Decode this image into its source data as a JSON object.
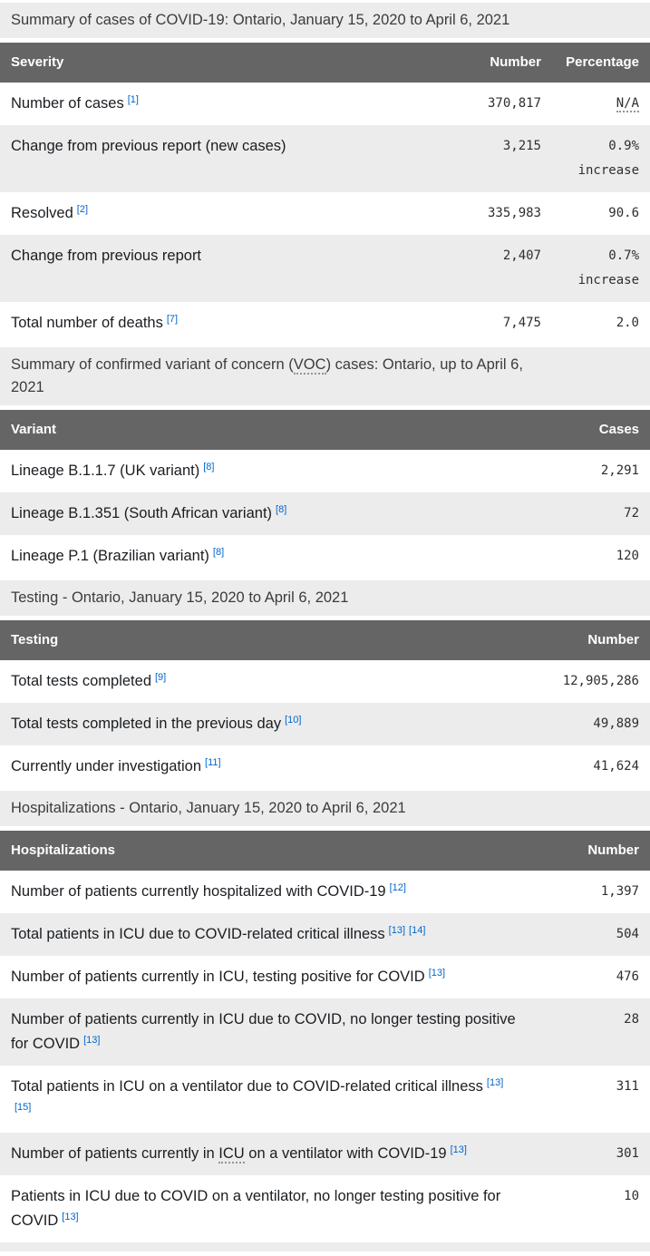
{
  "colors": {
    "table_header_bg": "#656565",
    "table_header_text": "#ffffff",
    "zebra_stripe_bg": "#ececec",
    "caption_bg": "#ececec",
    "footnote_link": "#0066cc"
  },
  "tables": [
    {
      "id": "cases",
      "caption_parts": [
        {
          "t": "text",
          "v": "Summary of cases of COVID-19: Ontario, January 15, 2020 to April 6, 2021"
        }
      ],
      "columns": [
        "Severity",
        "Number",
        "Percentage"
      ],
      "rows": [
        {
          "label": [
            {
              "t": "text",
              "v": "Number of cases"
            },
            {
              "t": "ref",
              "v": "[1]"
            }
          ],
          "values": [
            [
              {
                "t": "text",
                "v": "370,817"
              }
            ],
            [
              {
                "t": "abbr",
                "v": "N/A"
              }
            ]
          ]
        },
        {
          "label": [
            {
              "t": "text",
              "v": "Change from previous report (new cases)"
            }
          ],
          "values": [
            [
              {
                "t": "text",
                "v": "3,215"
              }
            ],
            [
              {
                "t": "text",
                "v": "0.9% increase"
              }
            ]
          ]
        },
        {
          "label": [
            {
              "t": "text",
              "v": "Resolved"
            },
            {
              "t": "ref",
              "v": "[2]"
            }
          ],
          "values": [
            [
              {
                "t": "text",
                "v": "335,983"
              }
            ],
            [
              {
                "t": "text",
                "v": "90.6"
              }
            ]
          ]
        },
        {
          "label": [
            {
              "t": "text",
              "v": "Change from previous report"
            }
          ],
          "values": [
            [
              {
                "t": "text",
                "v": "2,407"
              }
            ],
            [
              {
                "t": "text",
                "v": "0.7% increase"
              }
            ]
          ]
        },
        {
          "label": [
            {
              "t": "text",
              "v": "Total number of deaths"
            },
            {
              "t": "ref",
              "v": "[7]"
            }
          ],
          "values": [
            [
              {
                "t": "text",
                "v": "7,475"
              }
            ],
            [
              {
                "t": "text",
                "v": "2.0"
              }
            ]
          ]
        }
      ]
    },
    {
      "id": "variants",
      "caption_parts": [
        {
          "t": "text",
          "v": "Summary of confirmed variant of concern ("
        },
        {
          "t": "abbr",
          "v": "VOC"
        },
        {
          "t": "text",
          "v": ") cases: Ontario, up to April 6,"
        },
        {
          "t": "br"
        },
        {
          "t": "text",
          "v": "2021"
        }
      ],
      "columns": [
        "Variant",
        "Cases"
      ],
      "rows": [
        {
          "label": [
            {
              "t": "text",
              "v": "Lineage B.1.1.7 (UK variant)"
            },
            {
              "t": "ref",
              "v": "[8]"
            }
          ],
          "values": [
            [
              {
                "t": "text",
                "v": "2,291"
              }
            ]
          ]
        },
        {
          "label": [
            {
              "t": "text",
              "v": "Lineage B.1.351 (South African variant)"
            },
            {
              "t": "ref",
              "v": "[8]"
            }
          ],
          "values": [
            [
              {
                "t": "text",
                "v": "72"
              }
            ]
          ]
        },
        {
          "label": [
            {
              "t": "text",
              "v": "Lineage P.1 (Brazilian variant)"
            },
            {
              "t": "ref",
              "v": "[8]"
            }
          ],
          "values": [
            [
              {
                "t": "text",
                "v": "120"
              }
            ]
          ]
        }
      ]
    },
    {
      "id": "testing",
      "caption_parts": [
        {
          "t": "text",
          "v": "Testing - Ontario, January 15, 2020 to April 6, 2021"
        }
      ],
      "columns": [
        "Testing",
        "Number"
      ],
      "rows": [
        {
          "label": [
            {
              "t": "text",
              "v": "Total tests completed"
            },
            {
              "t": "ref",
              "v": "[9]"
            }
          ],
          "values": [
            [
              {
                "t": "text",
                "v": "12,905,286"
              }
            ]
          ]
        },
        {
          "label": [
            {
              "t": "text",
              "v": "Total tests completed in the previous day"
            },
            {
              "t": "ref",
              "v": "[10]"
            }
          ],
          "values": [
            [
              {
                "t": "text",
                "v": "49,889"
              }
            ]
          ]
        },
        {
          "label": [
            {
              "t": "text",
              "v": "Currently under investigation"
            },
            {
              "t": "ref",
              "v": "[11]"
            }
          ],
          "values": [
            [
              {
                "t": "text",
                "v": "41,624"
              }
            ]
          ]
        }
      ]
    },
    {
      "id": "hospitalizations",
      "caption_parts": [
        {
          "t": "text",
          "v": "Hospitalizations - Ontario, January 15, 2020 to April 6, 2021"
        }
      ],
      "columns": [
        "Hospitalizations",
        "Number"
      ],
      "cutoff_row": true,
      "rows": [
        {
          "label": [
            {
              "t": "text",
              "v": "Number of patients currently hospitalized with COVID-19"
            },
            {
              "t": "ref",
              "v": "[12]"
            }
          ],
          "values": [
            [
              {
                "t": "text",
                "v": "1,397"
              }
            ]
          ]
        },
        {
          "label": [
            {
              "t": "text",
              "v": "Total patients in ICU due to COVID-related critical illness"
            },
            {
              "t": "ref",
              "v": "[13]"
            },
            {
              "t": "ref",
              "v": "[14]"
            }
          ],
          "values": [
            [
              {
                "t": "text",
                "v": "504"
              }
            ]
          ]
        },
        {
          "label": [
            {
              "t": "text",
              "v": "Number of patients currently in ICU, testing positive for COVID"
            },
            {
              "t": "ref",
              "v": "[13]"
            }
          ],
          "values": [
            [
              {
                "t": "text",
                "v": "476"
              }
            ]
          ]
        },
        {
          "label": [
            {
              "t": "text",
              "v": "Number of patients currently in ICU due to COVID, no longer testing positive for COVID"
            },
            {
              "t": "ref",
              "v": "[13]"
            }
          ],
          "values": [
            [
              {
                "t": "text",
                "v": "28"
              }
            ]
          ]
        },
        {
          "label": [
            {
              "t": "text",
              "v": "Total patients in ICU on a ventilator due to COVID-related critical illness"
            },
            {
              "t": "ref",
              "v": "[13]"
            },
            {
              "t": "ref",
              "v": "[15]"
            }
          ],
          "values": [
            [
              {
                "t": "text",
                "v": "311"
              }
            ]
          ]
        },
        {
          "label": [
            {
              "t": "text",
              "v": "Number of patients currently in "
            },
            {
              "t": "abbr",
              "v": "ICU"
            },
            {
              "t": "text",
              "v": " on a ventilator with COVID-19"
            },
            {
              "t": "ref",
              "v": "[13]"
            }
          ],
          "values": [
            [
              {
                "t": "text",
                "v": "301"
              }
            ]
          ]
        },
        {
          "label": [
            {
              "t": "text",
              "v": "Patients in ICU due to COVID on a ventilator, no longer testing positive for COVID"
            },
            {
              "t": "ref",
              "v": "[13]"
            }
          ],
          "values": [
            [
              {
                "t": "text",
                "v": "10"
              }
            ]
          ]
        }
      ]
    }
  ]
}
